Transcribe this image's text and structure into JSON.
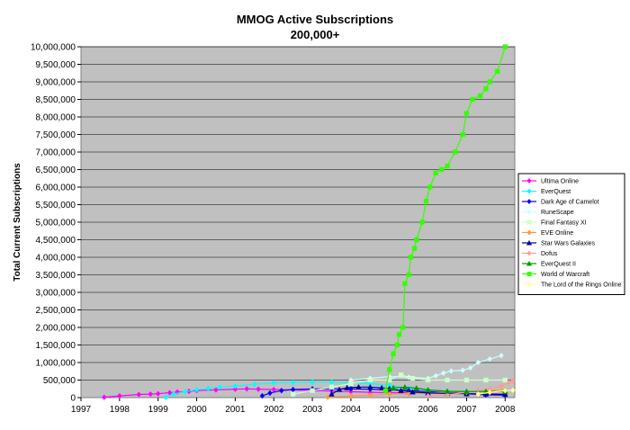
{
  "chart_data": {
    "type": "line",
    "title": "MMOG Active Subscriptions",
    "subtitle": "200,000+",
    "xlabel": "",
    "ylabel": "Total Current Subscriptions",
    "xlim": [
      1997,
      2008.25
    ],
    "ylim": [
      0,
      10000000
    ],
    "x_ticks": [
      "1997",
      "1998",
      "1999",
      "2000",
      "2001",
      "2002",
      "2003",
      "2004",
      "2005",
      "2006",
      "2007",
      "2008"
    ],
    "y_ticks": [
      "0",
      "500,000",
      "1,000,000",
      "1,500,000",
      "2,000,000",
      "2,500,000",
      "3,000,000",
      "3,500,000",
      "4,000,000",
      "4,500,000",
      "5,000,000",
      "5,500,000",
      "6,000,000",
      "6,500,000",
      "7,000,000",
      "7,500,000",
      "8,000,000",
      "8,500,000",
      "9,000,000",
      "9,500,000",
      "10,000,000"
    ],
    "grid": true,
    "legend_position": "right",
    "series": [
      {
        "name": "Ultima Online",
        "color": "#ff00ff",
        "marker": "diamond",
        "points": [
          [
            1997.6,
            10000
          ],
          [
            1998.0,
            50000
          ],
          [
            1998.5,
            90000
          ],
          [
            1998.8,
            100000
          ],
          [
            1999.0,
            110000
          ],
          [
            1999.3,
            140000
          ],
          [
            1999.5,
            160000
          ],
          [
            1999.8,
            180000
          ],
          [
            2000.0,
            200000
          ],
          [
            2000.5,
            220000
          ],
          [
            2001.0,
            240000
          ],
          [
            2001.3,
            250000
          ],
          [
            2001.6,
            240000
          ],
          [
            2002.0,
            230000
          ],
          [
            2002.5,
            220000
          ],
          [
            2003.0,
            200000
          ],
          [
            2003.5,
            190000
          ],
          [
            2004.0,
            170000
          ],
          [
            2004.5,
            150000
          ],
          [
            2005.0,
            140000
          ],
          [
            2005.5,
            135000
          ],
          [
            2006.0,
            130000
          ],
          [
            2006.5,
            125000
          ],
          [
            2007.0,
            115000
          ],
          [
            2007.5,
            110000
          ],
          [
            2008.0,
            100000
          ]
        ]
      },
      {
        "name": "EverQuest",
        "color": "#00ffff",
        "marker": "diamond",
        "points": [
          [
            1999.2,
            10000
          ],
          [
            1999.4,
            100000
          ],
          [
            1999.7,
            170000
          ],
          [
            2000.0,
            225000
          ],
          [
            2000.3,
            265000
          ],
          [
            2000.6,
            300000
          ],
          [
            2001.0,
            330000
          ],
          [
            2001.5,
            380000
          ],
          [
            2002.0,
            420000
          ],
          [
            2002.5,
            430000
          ],
          [
            2003.0,
            440000
          ],
          [
            2003.5,
            440000
          ],
          [
            2004.0,
            420000
          ],
          [
            2004.5,
            400000
          ],
          [
            2005.0,
            350000
          ],
          [
            2005.5,
            270000
          ],
          [
            2006.0,
            220000
          ],
          [
            2006.5,
            190000
          ],
          [
            2007.0,
            180000
          ],
          [
            2007.5,
            175000
          ],
          [
            2008.0,
            175000
          ]
        ]
      },
      {
        "name": "Dark Age of Camelot",
        "color": "#0000ff",
        "marker": "diamond",
        "points": [
          [
            2001.7,
            50000
          ],
          [
            2001.9,
            130000
          ],
          [
            2002.2,
            200000
          ],
          [
            2002.5,
            230000
          ],
          [
            2003.0,
            250000
          ],
          [
            2003.5,
            250000
          ],
          [
            2004.0,
            250000
          ],
          [
            2004.5,
            240000
          ],
          [
            2005.0,
            220000
          ],
          [
            2005.5,
            200000
          ],
          [
            2006.0,
            170000
          ],
          [
            2006.5,
            140000
          ],
          [
            2007.0,
            110000
          ],
          [
            2007.5,
            80000
          ],
          [
            2008.0,
            70000
          ]
        ]
      },
      {
        "name": "RuneScape",
        "color": "#ccffff",
        "marker": "diamond",
        "points": [
          [
            2004.0,
            500000
          ],
          [
            2004.5,
            550000
          ],
          [
            2005.0,
            600000
          ],
          [
            2005.5,
            580000
          ],
          [
            2006.0,
            550000
          ],
          [
            2006.2,
            620000
          ],
          [
            2006.4,
            700000
          ],
          [
            2006.6,
            760000
          ],
          [
            2006.9,
            780000
          ],
          [
            2007.1,
            850000
          ],
          [
            2007.3,
            1000000
          ],
          [
            2007.6,
            1100000
          ],
          [
            2007.9,
            1200000
          ]
        ]
      },
      {
        "name": "Final Fantasy XI",
        "color": "#ccffcc",
        "marker": "square",
        "points": [
          [
            2002.5,
            100000
          ],
          [
            2003.0,
            200000
          ],
          [
            2003.5,
            300000
          ],
          [
            2004.0,
            400000
          ],
          [
            2004.5,
            500000
          ],
          [
            2005.0,
            500000
          ],
          [
            2005.3,
            650000
          ],
          [
            2005.6,
            550000
          ],
          [
            2006.0,
            500000
          ],
          [
            2006.5,
            500000
          ],
          [
            2007.0,
            500000
          ],
          [
            2007.5,
            500000
          ],
          [
            2008.0,
            500000
          ]
        ]
      },
      {
        "name": "EVE Online",
        "color": "#ff9933",
        "marker": "diamond",
        "points": [
          [
            2003.4,
            10000
          ],
          [
            2004.0,
            50000
          ],
          [
            2004.5,
            70000
          ],
          [
            2005.0,
            100000
          ],
          [
            2005.5,
            110000
          ],
          [
            2006.0,
            130000
          ],
          [
            2006.5,
            150000
          ],
          [
            2007.0,
            170000
          ],
          [
            2007.5,
            190000
          ],
          [
            2008.0,
            220000
          ]
        ]
      },
      {
        "name": "Star Wars Galaxies",
        "color": "#000099",
        "marker": "triangle",
        "points": [
          [
            2003.5,
            100000
          ],
          [
            2003.7,
            230000
          ],
          [
            2003.9,
            280000
          ],
          [
            2004.2,
            300000
          ],
          [
            2004.5,
            300000
          ],
          [
            2004.8,
            280000
          ],
          [
            2005.0,
            260000
          ],
          [
            2005.3,
            200000
          ],
          [
            2005.6,
            160000
          ],
          [
            2006.0,
            130000
          ],
          [
            2006.5,
            120000
          ],
          [
            2007.0,
            110000
          ],
          [
            2007.5,
            100000
          ],
          [
            2008.0,
            90000
          ]
        ]
      },
      {
        "name": "Dofus",
        "color": "#ff9999",
        "marker": "diamond",
        "points": [
          [
            2006.0,
            50000
          ],
          [
            2006.5,
            80000
          ],
          [
            2007.0,
            150000
          ],
          [
            2007.3,
            200000
          ],
          [
            2007.6,
            250000
          ],
          [
            2007.9,
            330000
          ],
          [
            2008.1,
            430000
          ],
          [
            2008.2,
            480000
          ]
        ]
      },
      {
        "name": "EverQuest II",
        "color": "#009900",
        "marker": "triangle",
        "points": [
          [
            2004.9,
            200000
          ],
          [
            2005.1,
            280000
          ],
          [
            2005.4,
            300000
          ],
          [
            2005.7,
            270000
          ],
          [
            2006.0,
            220000
          ],
          [
            2006.5,
            180000
          ],
          [
            2007.0,
            175000
          ],
          [
            2007.5,
            175000
          ],
          [
            2008.0,
            175000
          ]
        ]
      },
      {
        "name": "World of Warcraft",
        "color": "#33ff00",
        "marker": "square",
        "points": [
          [
            2004.9,
            200000
          ],
          [
            2005.0,
            800000
          ],
          [
            2005.1,
            1250000
          ],
          [
            2005.2,
            1500000
          ],
          [
            2005.25,
            1800000
          ],
          [
            2005.35,
            2000000
          ],
          [
            2005.4,
            3250000
          ],
          [
            2005.5,
            3500000
          ],
          [
            2005.55,
            4000000
          ],
          [
            2005.65,
            4250000
          ],
          [
            2005.7,
            4500000
          ],
          [
            2005.85,
            5000000
          ],
          [
            2005.95,
            5600000
          ],
          [
            2006.05,
            6000000
          ],
          [
            2006.2,
            6400000
          ],
          [
            2006.35,
            6500000
          ],
          [
            2006.5,
            6600000
          ],
          [
            2006.7,
            7000000
          ],
          [
            2006.9,
            7500000
          ],
          [
            2007.0,
            8100000
          ],
          [
            2007.15,
            8500000
          ],
          [
            2007.35,
            8600000
          ],
          [
            2007.5,
            8800000
          ],
          [
            2007.6,
            9000000
          ],
          [
            2007.8,
            9300000
          ],
          [
            2008.0,
            10000000
          ]
        ]
      },
      {
        "name": "The Lord of the Rings Online",
        "color": "#ffff99",
        "marker": "diamond",
        "points": [
          [
            2007.3,
            100000
          ],
          [
            2007.6,
            150000
          ],
          [
            2008.0,
            200000
          ],
          [
            2008.2,
            210000
          ]
        ]
      }
    ]
  }
}
